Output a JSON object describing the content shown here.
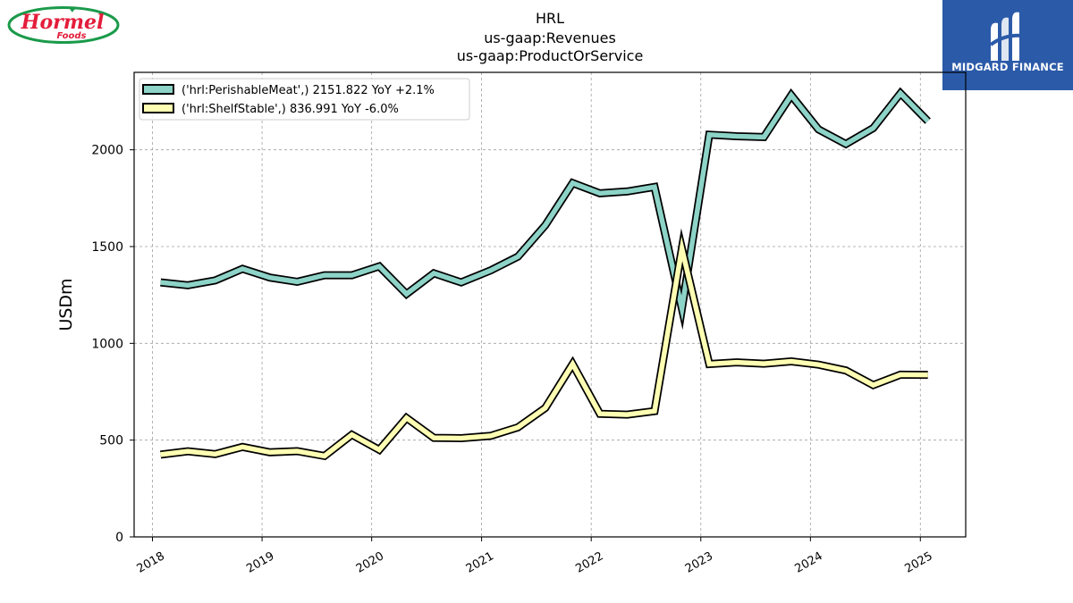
{
  "title_lines": [
    "HRL",
    "us-gaap:Revenues",
    "us-gaap:ProductOrService"
  ],
  "logos": {
    "left": {
      "text_main": "Hormel",
      "text_sub": "Foods",
      "color": "#e31d3b",
      "border_color": "#1a9a4a"
    },
    "right": {
      "text": "MIDGARD FINANCE",
      "bg_color": "#2b5aa8"
    }
  },
  "chart_data": {
    "type": "line",
    "ylabel": "USDm",
    "ylim": [
      0,
      2400
    ],
    "yticks": [
      0,
      500,
      1000,
      1500,
      2000
    ],
    "xlim": [
      "2017-11-01",
      "2025-06-01"
    ],
    "xticks": [
      "2018",
      "2019",
      "2020",
      "2021",
      "2022",
      "2023",
      "2024",
      "2025"
    ],
    "grid": true,
    "legend_position": "top-left",
    "series": [
      {
        "name": "('hrl:PerishableMeat',) 2151.822 YoY +2.1%",
        "color": "#8dd3c7",
        "points": [
          [
            "2018-01-28",
            1315
          ],
          [
            "2018-04-29",
            1300
          ],
          [
            "2018-07-29",
            1325
          ],
          [
            "2018-10-28",
            1385
          ],
          [
            "2019-01-27",
            1340
          ],
          [
            "2019-04-28",
            1318
          ],
          [
            "2019-07-28",
            1352
          ],
          [
            "2019-10-27",
            1352
          ],
          [
            "2020-01-26",
            1398
          ],
          [
            "2020-04-26",
            1255
          ],
          [
            "2020-07-26",
            1362
          ],
          [
            "2020-10-25",
            1315
          ],
          [
            "2021-01-31",
            1377
          ],
          [
            "2021-05-02",
            1448
          ],
          [
            "2021-08-01",
            1610
          ],
          [
            "2021-10-31",
            1828
          ],
          [
            "2022-01-30",
            1775
          ],
          [
            "2022-05-01",
            1785
          ],
          [
            "2022-07-31",
            1808
          ],
          [
            "2022-10-30",
            1180
          ],
          [
            "2023-01-29",
            2078
          ],
          [
            "2023-04-30",
            2070
          ],
          [
            "2023-07-30",
            2066
          ],
          [
            "2023-10-29",
            2282
          ],
          [
            "2024-01-28",
            2105
          ],
          [
            "2024-04-28",
            2030
          ],
          [
            "2024-07-28",
            2112
          ],
          [
            "2024-10-27",
            2292
          ],
          [
            "2025-01-26",
            2148
          ]
        ]
      },
      {
        "name": "('hrl:ShelfStable',) 836.991 YoY -6.0%",
        "color": "#ffffb3",
        "points": [
          [
            "2018-01-28",
            425
          ],
          [
            "2018-04-29",
            442
          ],
          [
            "2018-07-29",
            428
          ],
          [
            "2018-10-28",
            465
          ],
          [
            "2019-01-27",
            437
          ],
          [
            "2019-04-28",
            443
          ],
          [
            "2019-07-28",
            418
          ],
          [
            "2019-10-27",
            528
          ],
          [
            "2020-01-26",
            450
          ],
          [
            "2020-04-26",
            615
          ],
          [
            "2020-07-26",
            512
          ],
          [
            "2020-10-25",
            510
          ],
          [
            "2021-01-31",
            522
          ],
          [
            "2021-05-02",
            566
          ],
          [
            "2021-08-01",
            666
          ],
          [
            "2021-10-31",
            893
          ],
          [
            "2022-01-30",
            636
          ],
          [
            "2022-05-01",
            632
          ],
          [
            "2022-07-31",
            650
          ],
          [
            "2022-10-30",
            1490
          ],
          [
            "2023-01-29",
            893
          ],
          [
            "2023-04-30",
            902
          ],
          [
            "2023-07-30",
            895
          ],
          [
            "2023-10-29",
            907
          ],
          [
            "2024-01-28",
            890
          ],
          [
            "2024-04-28",
            860
          ],
          [
            "2024-07-28",
            784
          ],
          [
            "2024-10-27",
            838
          ],
          [
            "2025-01-26",
            837
          ]
        ]
      }
    ]
  }
}
